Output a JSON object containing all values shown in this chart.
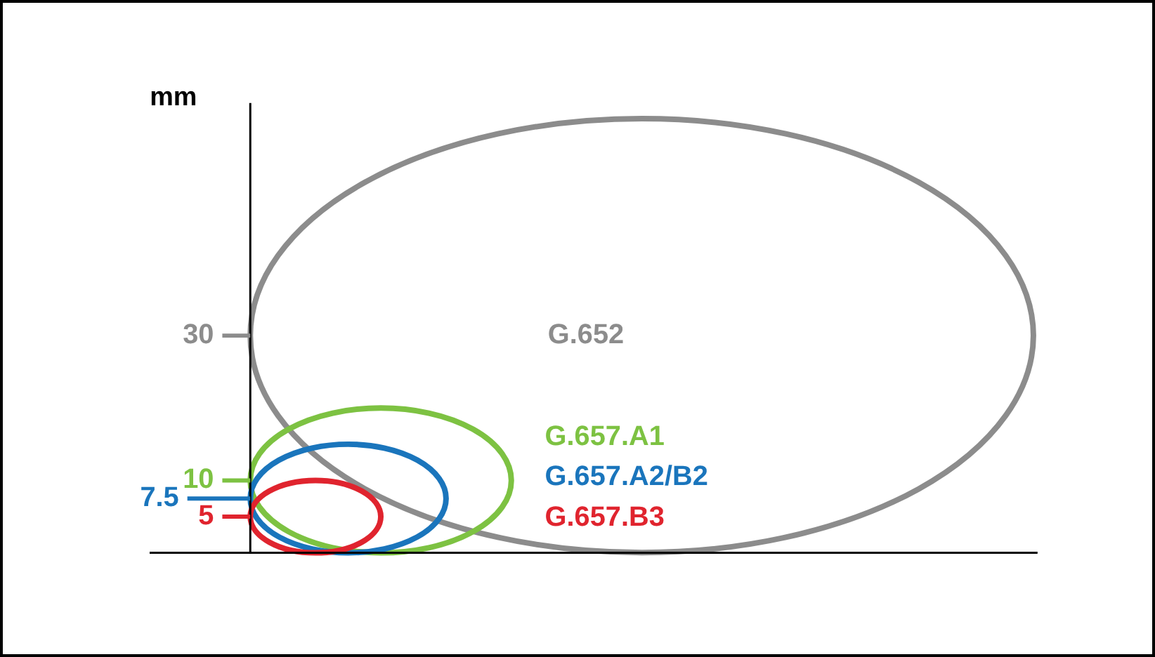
{
  "chart_data": {
    "type": "other",
    "ylabel": "mm",
    "categories": [
      "G.652",
      "G.657.A1",
      "G.657.A2/B2",
      "G.657.B3"
    ],
    "values": [
      30,
      10,
      7.5,
      5
    ],
    "data_labels": true,
    "colors": [
      "#8c8c8c",
      "#7dc242",
      "#1a75bc",
      "#e0242e"
    ]
  }
}
